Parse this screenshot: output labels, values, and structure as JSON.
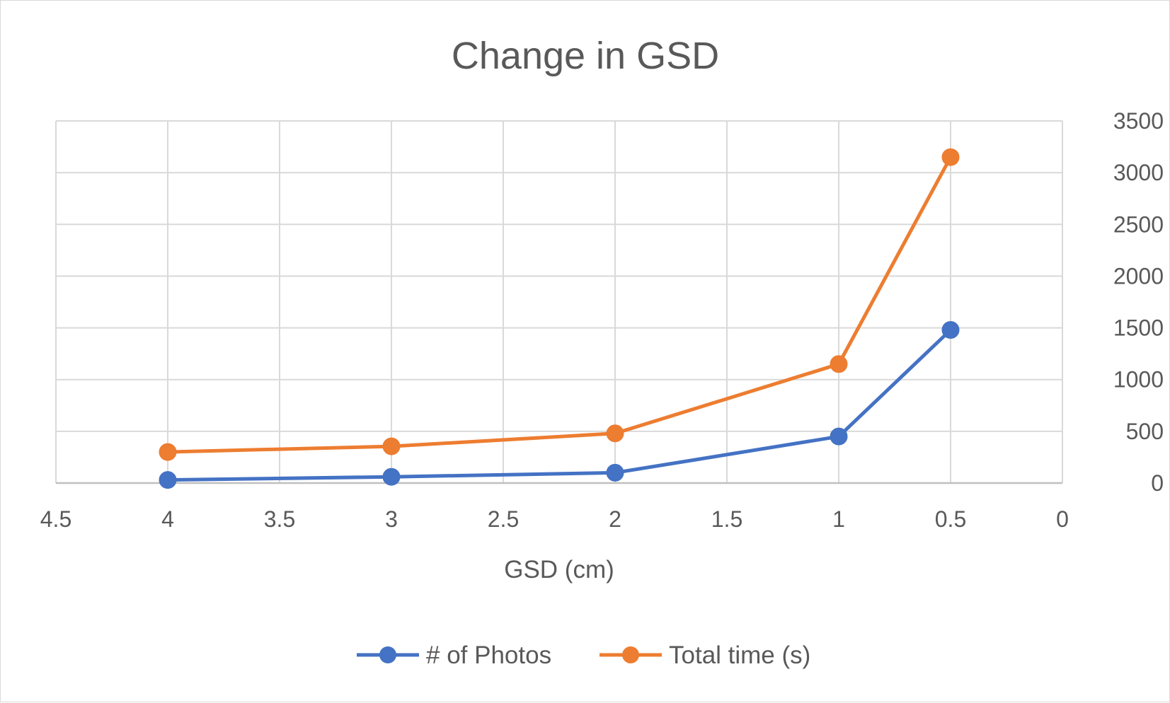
{
  "chart_data": {
    "type": "line",
    "title": "Change in GSD",
    "xlabel": "GSD (cm)",
    "ylabel": "",
    "x_reversed": true,
    "xlim": [
      0,
      4.5
    ],
    "ylim": [
      0,
      3500
    ],
    "x_ticks": [
      "4.5",
      "4",
      "3.5",
      "3",
      "2.5",
      "2",
      "1.5",
      "1",
      "0.5",
      "0"
    ],
    "y_ticks": [
      "0",
      "500",
      "1000",
      "1500",
      "2000",
      "2500",
      "3000",
      "3500"
    ],
    "y_axis_side": "right",
    "grid": true,
    "legend_position": "bottom",
    "x": [
      4,
      3,
      2,
      1,
      0.5
    ],
    "series": [
      {
        "name": "# of Photos",
        "color": "#4472C4",
        "values": [
          30,
          60,
          100,
          450,
          1480
        ]
      },
      {
        "name": "Total time (s)",
        "color": "#ED7D31",
        "values": [
          300,
          355,
          480,
          1150,
          3150
        ]
      }
    ]
  }
}
